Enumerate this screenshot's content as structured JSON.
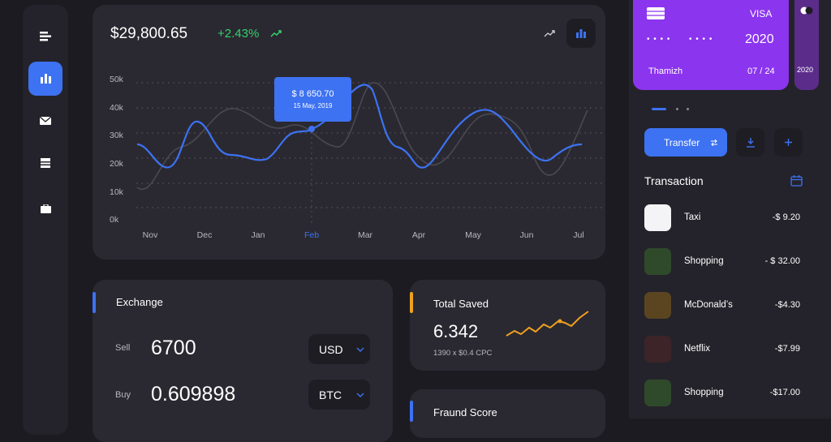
{
  "sidebar": {
    "items": [
      "menu-icon",
      "chart-icon",
      "mail-icon",
      "inbox-icon",
      "wallet-icon"
    ]
  },
  "chart": {
    "balance": "$29,800.65",
    "change": "+2.43%",
    "tooltip": {
      "value": "$ 8 650.70",
      "date": "15 May, 2019"
    },
    "y_ticks": [
      "50k",
      "40k",
      "30k",
      "20k",
      "10k",
      "0k"
    ],
    "x_ticks": [
      "Nov",
      "Dec",
      "Jan",
      "Feb",
      "Mar",
      "Apr",
      "May",
      "Jun",
      "Jul"
    ],
    "accent": "#3d72f2"
  },
  "exchange": {
    "title": "Exchange",
    "sell_label": "Sell",
    "sell_value": "6700",
    "sell_currency": "USD",
    "buy_label": "Buy",
    "buy_value": "0.609898",
    "buy_currency": "BTC"
  },
  "saved": {
    "title": "Total Saved",
    "value": "6.342",
    "sub": "1390 x $0.4 CPC"
  },
  "fraud": {
    "title": "Fraund Score"
  },
  "card": {
    "brand": "VISA",
    "dots1": "• • • •",
    "dots2": "• • • •",
    "number": "2020",
    "holder": "Thamizh",
    "expiry": "07 / 24",
    "next_number": "2020"
  },
  "actions": {
    "transfer": "Transfer"
  },
  "transactions": {
    "title": "Transaction",
    "items": [
      {
        "name": "Taxi",
        "amount": "-$ 9.20",
        "color": "#f4f4f6"
      },
      {
        "name": "Shopping",
        "amount": "- $ 32.00",
        "color": "#2f4a2a"
      },
      {
        "name": "McDonald’s",
        "amount": "-$4.30",
        "color": "#5a4520"
      },
      {
        "name": "Netflix",
        "amount": "-$7.99",
        "color": "#3d2428"
      },
      {
        "name": "Shopping",
        "amount": "-$17.00",
        "color": "#2f4a2a"
      }
    ]
  }
}
